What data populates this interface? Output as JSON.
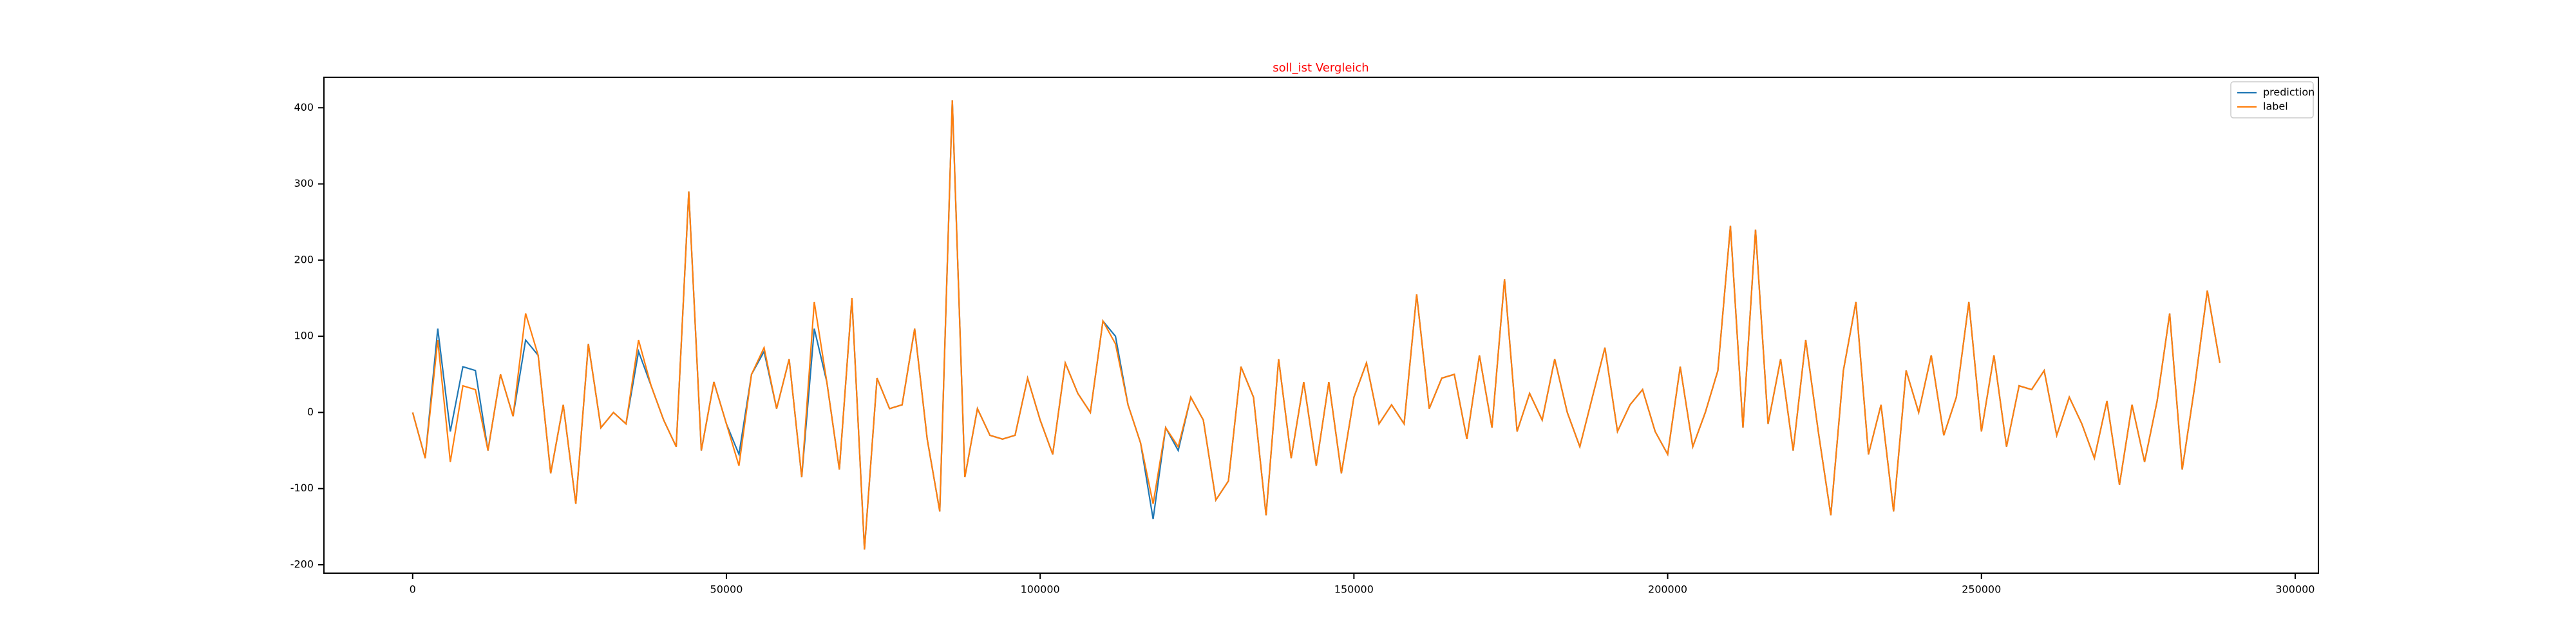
{
  "chart_data": {
    "type": "line",
    "title": "soll_ist Vergleich",
    "x": [
      0,
      2000,
      4000,
      6000,
      8000,
      10000,
      12000,
      14000,
      16000,
      18000,
      20000,
      22000,
      24000,
      26000,
      28000,
      30000,
      32000,
      34000,
      36000,
      38000,
      40000,
      42000,
      44000,
      46000,
      48000,
      50000,
      52000,
      54000,
      56000,
      58000,
      60000,
      62000,
      64000,
      66000,
      68000,
      70000,
      72000,
      74000,
      76000,
      78000,
      80000,
      82000,
      84000,
      86000,
      88000,
      90000,
      92000,
      94000,
      96000,
      98000,
      100000,
      102000,
      104000,
      106000,
      108000,
      110000,
      112000,
      114000,
      116000,
      118000,
      120000,
      122000,
      124000,
      126000,
      128000,
      130000,
      132000,
      134000,
      136000,
      138000,
      140000,
      142000,
      144000,
      146000,
      148000,
      150000,
      152000,
      154000,
      156000,
      158000,
      160000,
      162000,
      164000,
      166000,
      168000,
      170000,
      172000,
      174000,
      176000,
      178000,
      180000,
      182000,
      184000,
      186000,
      188000,
      190000,
      192000,
      194000,
      196000,
      198000,
      200000,
      202000,
      204000,
      206000,
      208000,
      210000,
      212000,
      214000,
      216000,
      218000,
      220000,
      222000,
      224000,
      226000,
      228000,
      230000,
      232000,
      234000,
      236000,
      238000,
      240000,
      242000,
      244000,
      246000,
      248000,
      250000,
      252000,
      254000,
      256000,
      258000,
      260000,
      262000,
      264000,
      266000,
      268000,
      270000,
      272000,
      274000,
      276000,
      278000,
      280000,
      282000,
      284000,
      286000,
      288000
    ],
    "series": [
      {
        "name": "prediction",
        "color": "#1f77b4",
        "values": [
          0,
          -60,
          110,
          -25,
          60,
          55,
          -50,
          50,
          -5,
          95,
          75,
          -80,
          10,
          -120,
          90,
          -20,
          0,
          -15,
          80,
          35,
          -10,
          -45,
          290,
          -50,
          40,
          -15,
          -55,
          50,
          80,
          5,
          70,
          -85,
          110,
          40,
          -75,
          150,
          -180,
          45,
          5,
          10,
          110,
          -35,
          -130,
          410,
          -85,
          5,
          -30,
          -35,
          -30,
          45,
          -10,
          -55,
          65,
          25,
          0,
          120,
          100,
          10,
          -40,
          -140,
          -20,
          -50,
          20,
          -10,
          -115,
          -90,
          60,
          20,
          -135,
          70,
          -60,
          40,
          -70,
          40,
          -80,
          20,
          65,
          -15,
          10,
          -15,
          155,
          5,
          45,
          50,
          -35,
          75,
          -20,
          175,
          -25,
          25,
          -10,
          70,
          0,
          -45,
          20,
          85,
          -25,
          10,
          30,
          -25,
          -55,
          60,
          -45,
          0,
          55,
          245,
          -20,
          240,
          -15,
          70,
          -50,
          95,
          -25,
          -135,
          55,
          145,
          -55,
          10,
          -130,
          55,
          0,
          75,
          -30,
          20,
          145,
          -25,
          75,
          -45,
          35,
          30,
          55,
          -30,
          20,
          -15,
          -60,
          15,
          -95,
          10,
          -65,
          15,
          130,
          -75,
          35,
          160,
          65
        ]
      },
      {
        "name": "label",
        "color": "#ff7f0e",
        "values": [
          0,
          -60,
          95,
          -65,
          35,
          30,
          -50,
          50,
          -5,
          130,
          75,
          -80,
          10,
          -120,
          90,
          -20,
          0,
          -15,
          95,
          35,
          -10,
          -45,
          290,
          -50,
          40,
          -15,
          -70,
          50,
          85,
          5,
          70,
          -85,
          145,
          40,
          -75,
          150,
          -180,
          45,
          5,
          10,
          110,
          -35,
          -130,
          410,
          -85,
          5,
          -30,
          -35,
          -30,
          45,
          -10,
          -55,
          65,
          25,
          0,
          120,
          90,
          10,
          -40,
          -120,
          -20,
          -45,
          20,
          -10,
          -115,
          -90,
          60,
          20,
          -135,
          70,
          -60,
          40,
          -70,
          40,
          -80,
          20,
          65,
          -15,
          10,
          -15,
          155,
          5,
          45,
          50,
          -35,
          75,
          -20,
          175,
          -25,
          25,
          -10,
          70,
          0,
          -45,
          20,
          85,
          -25,
          10,
          30,
          -25,
          -55,
          60,
          -45,
          0,
          55,
          245,
          -20,
          240,
          -15,
          70,
          -50,
          95,
          -25,
          -135,
          55,
          145,
          -55,
          10,
          -130,
          55,
          0,
          75,
          -30,
          20,
          145,
          -25,
          75,
          -45,
          35,
          30,
          55,
          -30,
          20,
          -15,
          -60,
          15,
          -95,
          10,
          -65,
          15,
          130,
          -75,
          35,
          160,
          65
        ]
      }
    ],
    "xlim": [
      -14140,
      303700
    ],
    "xticks": [
      0,
      50000,
      100000,
      150000,
      200000,
      250000,
      300000
    ],
    "ylim": [
      -211,
      440
    ],
    "yticks": [
      -200,
      -100,
      0,
      100,
      200,
      300,
      400
    ],
    "grid": false,
    "legend": "upper right"
  }
}
